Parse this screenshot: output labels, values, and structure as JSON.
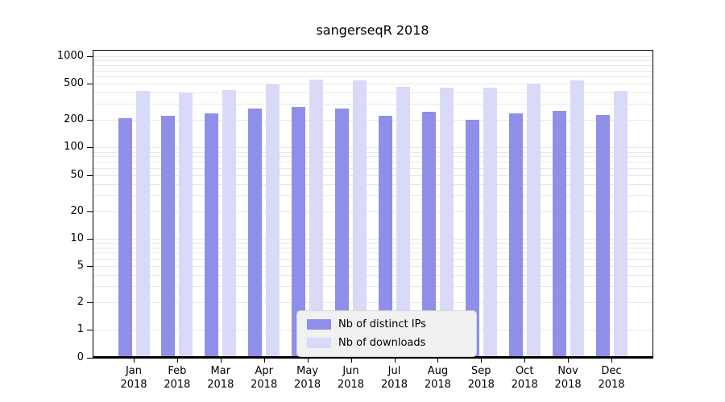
{
  "chart_data": {
    "type": "bar",
    "title": "sangerseqR 2018",
    "categories": [
      "Jan",
      "Feb",
      "Mar",
      "Apr",
      "May",
      "Jun",
      "Jul",
      "Aug",
      "Sep",
      "Oct",
      "Nov",
      "Dec"
    ],
    "category_year": "2018",
    "series": [
      {
        "name": "Nb of distinct IPs",
        "color": "#8f8fe9",
        "values": [
          210,
          225,
          235,
          270,
          280,
          265,
          225,
          245,
          200,
          235,
          250,
          228
        ]
      },
      {
        "name": "Nb of downloads",
        "color": "#d9d9f8",
        "values": [
          420,
          400,
          425,
          490,
          560,
          550,
          460,
          455,
          450,
          505,
          550,
          420
        ]
      }
    ],
    "yticks": [
      0,
      1,
      2,
      5,
      10,
      20,
      50,
      100,
      200,
      500,
      1000
    ],
    "yscale": "log",
    "ylim": [
      0,
      1000
    ],
    "grid": "horizontal-minor",
    "gridline_color": "#e7e7e7",
    "axis_color": "#000000",
    "legend_position": "bottom-center",
    "legend_bg": "#f1f1f1"
  }
}
